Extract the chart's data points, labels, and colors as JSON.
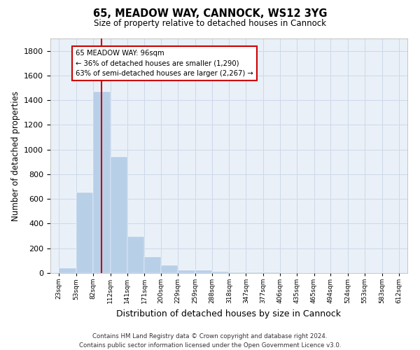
{
  "title": "65, MEADOW WAY, CANNOCK, WS12 3YG",
  "subtitle": "Size of property relative to detached houses in Cannock",
  "xlabel": "Distribution of detached houses by size in Cannock",
  "ylabel": "Number of detached properties",
  "bar_color": "#b8cfe8",
  "bar_edgecolor": "#b8cfe8",
  "grid_color": "#cdd8e8",
  "background_color": "#eaf0f8",
  "vline_x": 96,
  "vline_color": "#cc0000",
  "annotation_box_color": "#cc0000",
  "annotation_lines": [
    "65 MEADOW WAY: 96sqm",
    "← 36% of detached houses are smaller (1,290)",
    "63% of semi-detached houses are larger (2,267) →"
  ],
  "bins_left": [
    23,
    53,
    82,
    112,
    141,
    171,
    200,
    229,
    259,
    288,
    318,
    347,
    377,
    406,
    435,
    465,
    494,
    524,
    553,
    583
  ],
  "bins_right": [
    53,
    82,
    112,
    141,
    171,
    200,
    229,
    259,
    288,
    318,
    347,
    377,
    406,
    435,
    465,
    494,
    524,
    553,
    583,
    612
  ],
  "bar_heights": [
    40,
    650,
    1470,
    940,
    295,
    130,
    60,
    25,
    20,
    10,
    5,
    5,
    5,
    0,
    0,
    0,
    0,
    0,
    0,
    0
  ],
  "ylim": [
    0,
    1900
  ],
  "yticks": [
    0,
    200,
    400,
    600,
    800,
    1000,
    1200,
    1400,
    1600,
    1800
  ],
  "xtick_labels": [
    "23sqm",
    "53sqm",
    "82sqm",
    "112sqm",
    "141sqm",
    "171sqm",
    "200sqm",
    "229sqm",
    "259sqm",
    "288sqm",
    "318sqm",
    "347sqm",
    "377sqm",
    "406sqm",
    "435sqm",
    "465sqm",
    "494sqm",
    "524sqm",
    "553sqm",
    "583sqm",
    "612sqm"
  ],
  "footer_lines": [
    "Contains HM Land Registry data © Crown copyright and database right 2024.",
    "Contains public sector information licensed under the Open Government Licence v3.0."
  ],
  "figsize": [
    6.0,
    5.0
  ],
  "dpi": 100
}
